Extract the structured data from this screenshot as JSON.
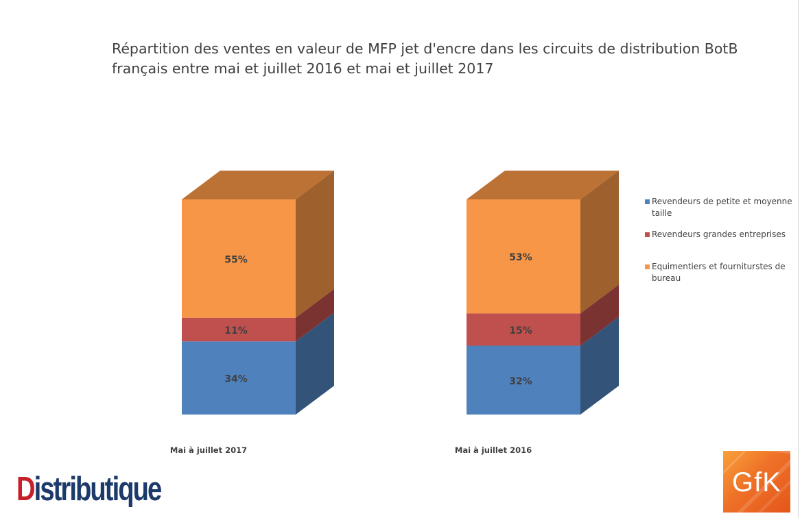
{
  "chart_data": {
    "type": "bar",
    "stacked": true,
    "percent_stacked": true,
    "three_d": true,
    "title": "Répartition des ventes en valeur de MFP jet d'encre dans les circuits de distribution BotB français entre mai et juillet 2016 et mai et juillet 2017",
    "categories": [
      "Mai à juillet 2017",
      "Mai à juillet 2016"
    ],
    "series": [
      {
        "name": "Revendeurs de petite et moyenne taille",
        "values": [
          34,
          32
        ],
        "labels": [
          "34%",
          "32%"
        ],
        "color": "#4f81bd"
      },
      {
        "name": "Revendeurs grandes entreprises",
        "values": [
          11,
          15
        ],
        "labels": [
          "11%",
          "15%"
        ],
        "color": "#c0504d"
      },
      {
        "name": "Equimentiers et fourniturstes de bureau",
        "values": [
          55,
          53
        ],
        "labels": [
          "55%",
          "53%"
        ],
        "color": "#f79646"
      }
    ],
    "ylim": [
      0,
      100
    ],
    "legend_position": "right",
    "grid": false
  },
  "branding": {
    "publisher_first": "D",
    "publisher_rest": "istributique",
    "publisher_name": "Distributique",
    "source_logo": "GfK"
  },
  "colors": {
    "title_text": "#3f3f3f",
    "publisher_red": "#c8202b",
    "publisher_navy": "#1c3a6a",
    "gfk_orange": "#ee7127"
  }
}
